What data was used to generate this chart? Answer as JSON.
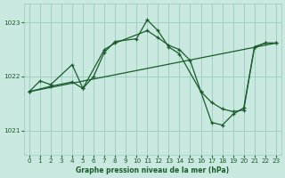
{
  "title": "Graphe pression niveau de la mer (hPa)",
  "bg_color": "#c8e8e0",
  "grid_color": "#99ccbb",
  "line_color": "#1a5c2a",
  "ylim": [
    1020.55,
    1023.35
  ],
  "yticks": [
    1021,
    1022,
    1023
  ],
  "xlim": [
    -0.5,
    23.5
  ],
  "xticks": [
    0,
    1,
    2,
    3,
    4,
    5,
    6,
    7,
    8,
    9,
    10,
    11,
    12,
    13,
    14,
    15,
    16,
    17,
    18,
    19,
    20,
    21,
    22,
    23
  ],
  "trend_x": [
    0,
    23
  ],
  "trend_y": [
    1021.72,
    1022.62
  ],
  "series1_x": [
    0,
    2,
    4,
    5,
    7,
    8,
    11,
    12,
    13,
    14,
    15,
    16,
    17,
    18,
    19,
    20,
    21,
    22,
    23
  ],
  "series1_y": [
    1021.72,
    1021.82,
    1021.9,
    1021.78,
    1022.5,
    1022.62,
    1022.85,
    1022.72,
    1022.58,
    1022.5,
    1022.3,
    1021.72,
    1021.52,
    1021.4,
    1021.35,
    1021.38,
    1022.55,
    1022.62,
    1022.62
  ],
  "series2_x": [
    0,
    1,
    2,
    4,
    5,
    6,
    7,
    8,
    10,
    11,
    12,
    13,
    14,
    16,
    17,
    18,
    19,
    20,
    21,
    22,
    23
  ],
  "series2_y": [
    1021.72,
    1021.92,
    1021.85,
    1022.22,
    1021.78,
    1022.0,
    1022.45,
    1022.65,
    1022.7,
    1023.05,
    1022.85,
    1022.55,
    1022.42,
    1021.72,
    1021.15,
    1021.1,
    1021.3,
    1021.42,
    1022.55,
    1022.62,
    1022.62
  ]
}
